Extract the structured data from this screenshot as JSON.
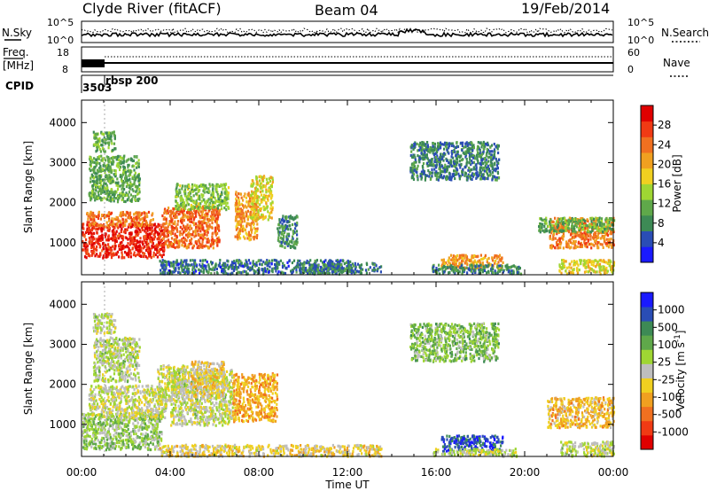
{
  "header": {
    "station": "Clyde River (fitACF)",
    "beam": "Beam 04",
    "date": "19/Feb/2014"
  },
  "top_panels": {
    "nsky_label": "N.Sky",
    "nsky_ticks": [
      "10^5",
      "10^0"
    ],
    "nsearch_label": "N.Search",
    "nsearch_ticks": [
      "10^5",
      "10^0"
    ],
    "freq_label": "Freq.",
    "freq_unit": "[MHz]",
    "freq_ticks": [
      "18",
      "8"
    ],
    "nave_label": "Nave",
    "nave_ticks": [
      "60",
      "0"
    ],
    "cpid_label": "CPID",
    "cpid_values": [
      "3503",
      "rbsp 200"
    ]
  },
  "chart_data": [
    {
      "type": "heatmap",
      "title": "",
      "parameter": "Power",
      "ylabel": "Slant Range [km]",
      "xlabel": "",
      "x_ticks": [
        "00:00",
        "04:00",
        "08:00",
        "12:00",
        "16:00",
        "20:00",
        "00:00"
      ],
      "xlim_hours": [
        0,
        24
      ],
      "y_ticks": [
        "1000",
        "2000",
        "3000",
        "4000"
      ],
      "ylim": [
        200,
        4560
      ],
      "colorbar": {
        "label": "Power [dB]",
        "ticks": [
          "4",
          "8",
          "12",
          "16",
          "20",
          "24",
          "28"
        ],
        "range": [
          0,
          30
        ],
        "colors": [
          "#1a1aff",
          "#2a4db5",
          "#3d8a55",
          "#5fa84a",
          "#9fd633",
          "#f0d020",
          "#f0a020",
          "#f07020",
          "#f03a14",
          "#e00000"
        ]
      },
      "regions": [
        {
          "t0": 0.0,
          "t1": 3.7,
          "r0": 650,
          "r1": 1500,
          "value": 27
        },
        {
          "t0": 0.2,
          "t1": 3.2,
          "r0": 1450,
          "r1": 1800,
          "value": 22
        },
        {
          "t0": 3.6,
          "t1": 6.2,
          "r0": 900,
          "r1": 1950,
          "value": 23
        },
        {
          "t0": 4.2,
          "t1": 6.6,
          "r0": 1850,
          "r1": 2500,
          "value": 12
        },
        {
          "t0": 6.9,
          "t1": 7.9,
          "r0": 1100,
          "r1": 2300,
          "value": 20
        },
        {
          "t0": 7.6,
          "t1": 8.6,
          "r0": 1600,
          "r1": 2700,
          "value": 16
        },
        {
          "t0": 0.3,
          "t1": 2.6,
          "r0": 2050,
          "r1": 3200,
          "value": 10
        },
        {
          "t0": 8.8,
          "t1": 9.7,
          "r0": 900,
          "r1": 1700,
          "value": 8
        },
        {
          "t0": 3.5,
          "t1": 12.2,
          "r0": 250,
          "r1": 600,
          "value": 6
        },
        {
          "t0": 9.8,
          "t1": 13.5,
          "r0": 260,
          "r1": 520,
          "value": 7
        },
        {
          "t0": 16.2,
          "t1": 19.0,
          "r0": 380,
          "r1": 720,
          "value": 20
        },
        {
          "t0": 15.8,
          "t1": 19.8,
          "r0": 250,
          "r1": 480,
          "value": 8
        },
        {
          "t0": 21.1,
          "t1": 24.0,
          "r0": 900,
          "r1": 1650,
          "value": 22
        },
        {
          "t0": 20.6,
          "t1": 24.0,
          "r0": 1300,
          "r1": 1650,
          "value": 10
        },
        {
          "t0": 21.5,
          "t1": 24.0,
          "r0": 250,
          "r1": 600,
          "value": 16
        },
        {
          "t0": 14.8,
          "t1": 18.8,
          "r0": 2600,
          "r1": 3550,
          "value": 7
        },
        {
          "t0": 0.5,
          "t1": 1.5,
          "r0": 3300,
          "r1": 3800,
          "value": 10
        }
      ]
    },
    {
      "type": "heatmap",
      "title": "",
      "parameter": "Velocity",
      "ylabel": "Slant Range [km]",
      "xlabel": "Time UT",
      "x_ticks": [
        "00:00",
        "04:00",
        "08:00",
        "12:00",
        "16:00",
        "20:00",
        "00:00"
      ],
      "xlim_hours": [
        0,
        24
      ],
      "y_ticks": [
        "1000",
        "2000",
        "3000",
        "4000"
      ],
      "ylim": [
        200,
        4560
      ],
      "colorbar": {
        "label": "Velocity [m s^-1]",
        "ticks": [
          "1000",
          "500",
          "100",
          "25",
          "-25",
          "-100",
          "-500",
          "-1000"
        ],
        "range": [
          -1200,
          1200
        ],
        "colors": [
          "#e00000",
          "#f03a14",
          "#f07020",
          "#f0a020",
          "#f0d020",
          "#bebebe",
          "#9fd633",
          "#5fa84a",
          "#3d8a55",
          "#2a4db5",
          "#1a1aff"
        ]
      },
      "regions": [
        {
          "t0": 0.0,
          "t1": 3.6,
          "r0": 400,
          "r1": 1300,
          "value": 250
        },
        {
          "t0": 0.3,
          "t1": 3.8,
          "r0": 1200,
          "r1": 2000,
          "value": 0
        },
        {
          "t0": 3.4,
          "t1": 4.8,
          "r0": 1600,
          "r1": 2500,
          "value": 0
        },
        {
          "t0": 4.0,
          "t1": 6.8,
          "r0": 1000,
          "r1": 2400,
          "value": 60
        },
        {
          "t0": 4.9,
          "t1": 6.4,
          "r0": 1700,
          "r1": 2600,
          "value": -180
        },
        {
          "t0": 6.8,
          "t1": 8.8,
          "r0": 1100,
          "r1": 2300,
          "value": -400
        },
        {
          "t0": 0.5,
          "t1": 2.6,
          "r0": 2100,
          "r1": 3200,
          "value": 100
        },
        {
          "t0": 3.5,
          "t1": 13.5,
          "r0": 230,
          "r1": 520,
          "value": -150
        },
        {
          "t0": 16.2,
          "t1": 19.0,
          "r0": 350,
          "r1": 750,
          "value": 900
        },
        {
          "t0": 15.8,
          "t1": 19.6,
          "r0": 230,
          "r1": 420,
          "value": 60
        },
        {
          "t0": 21.0,
          "t1": 24.0,
          "r0": 950,
          "r1": 1700,
          "value": -300
        },
        {
          "t0": 21.6,
          "t1": 24.0,
          "r0": 230,
          "r1": 600,
          "value": 60
        },
        {
          "t0": 14.8,
          "t1": 18.8,
          "r0": 2600,
          "r1": 3550,
          "value": 300
        },
        {
          "t0": 0.5,
          "t1": 1.5,
          "r0": 3300,
          "r1": 3800,
          "value": 50
        }
      ]
    }
  ]
}
